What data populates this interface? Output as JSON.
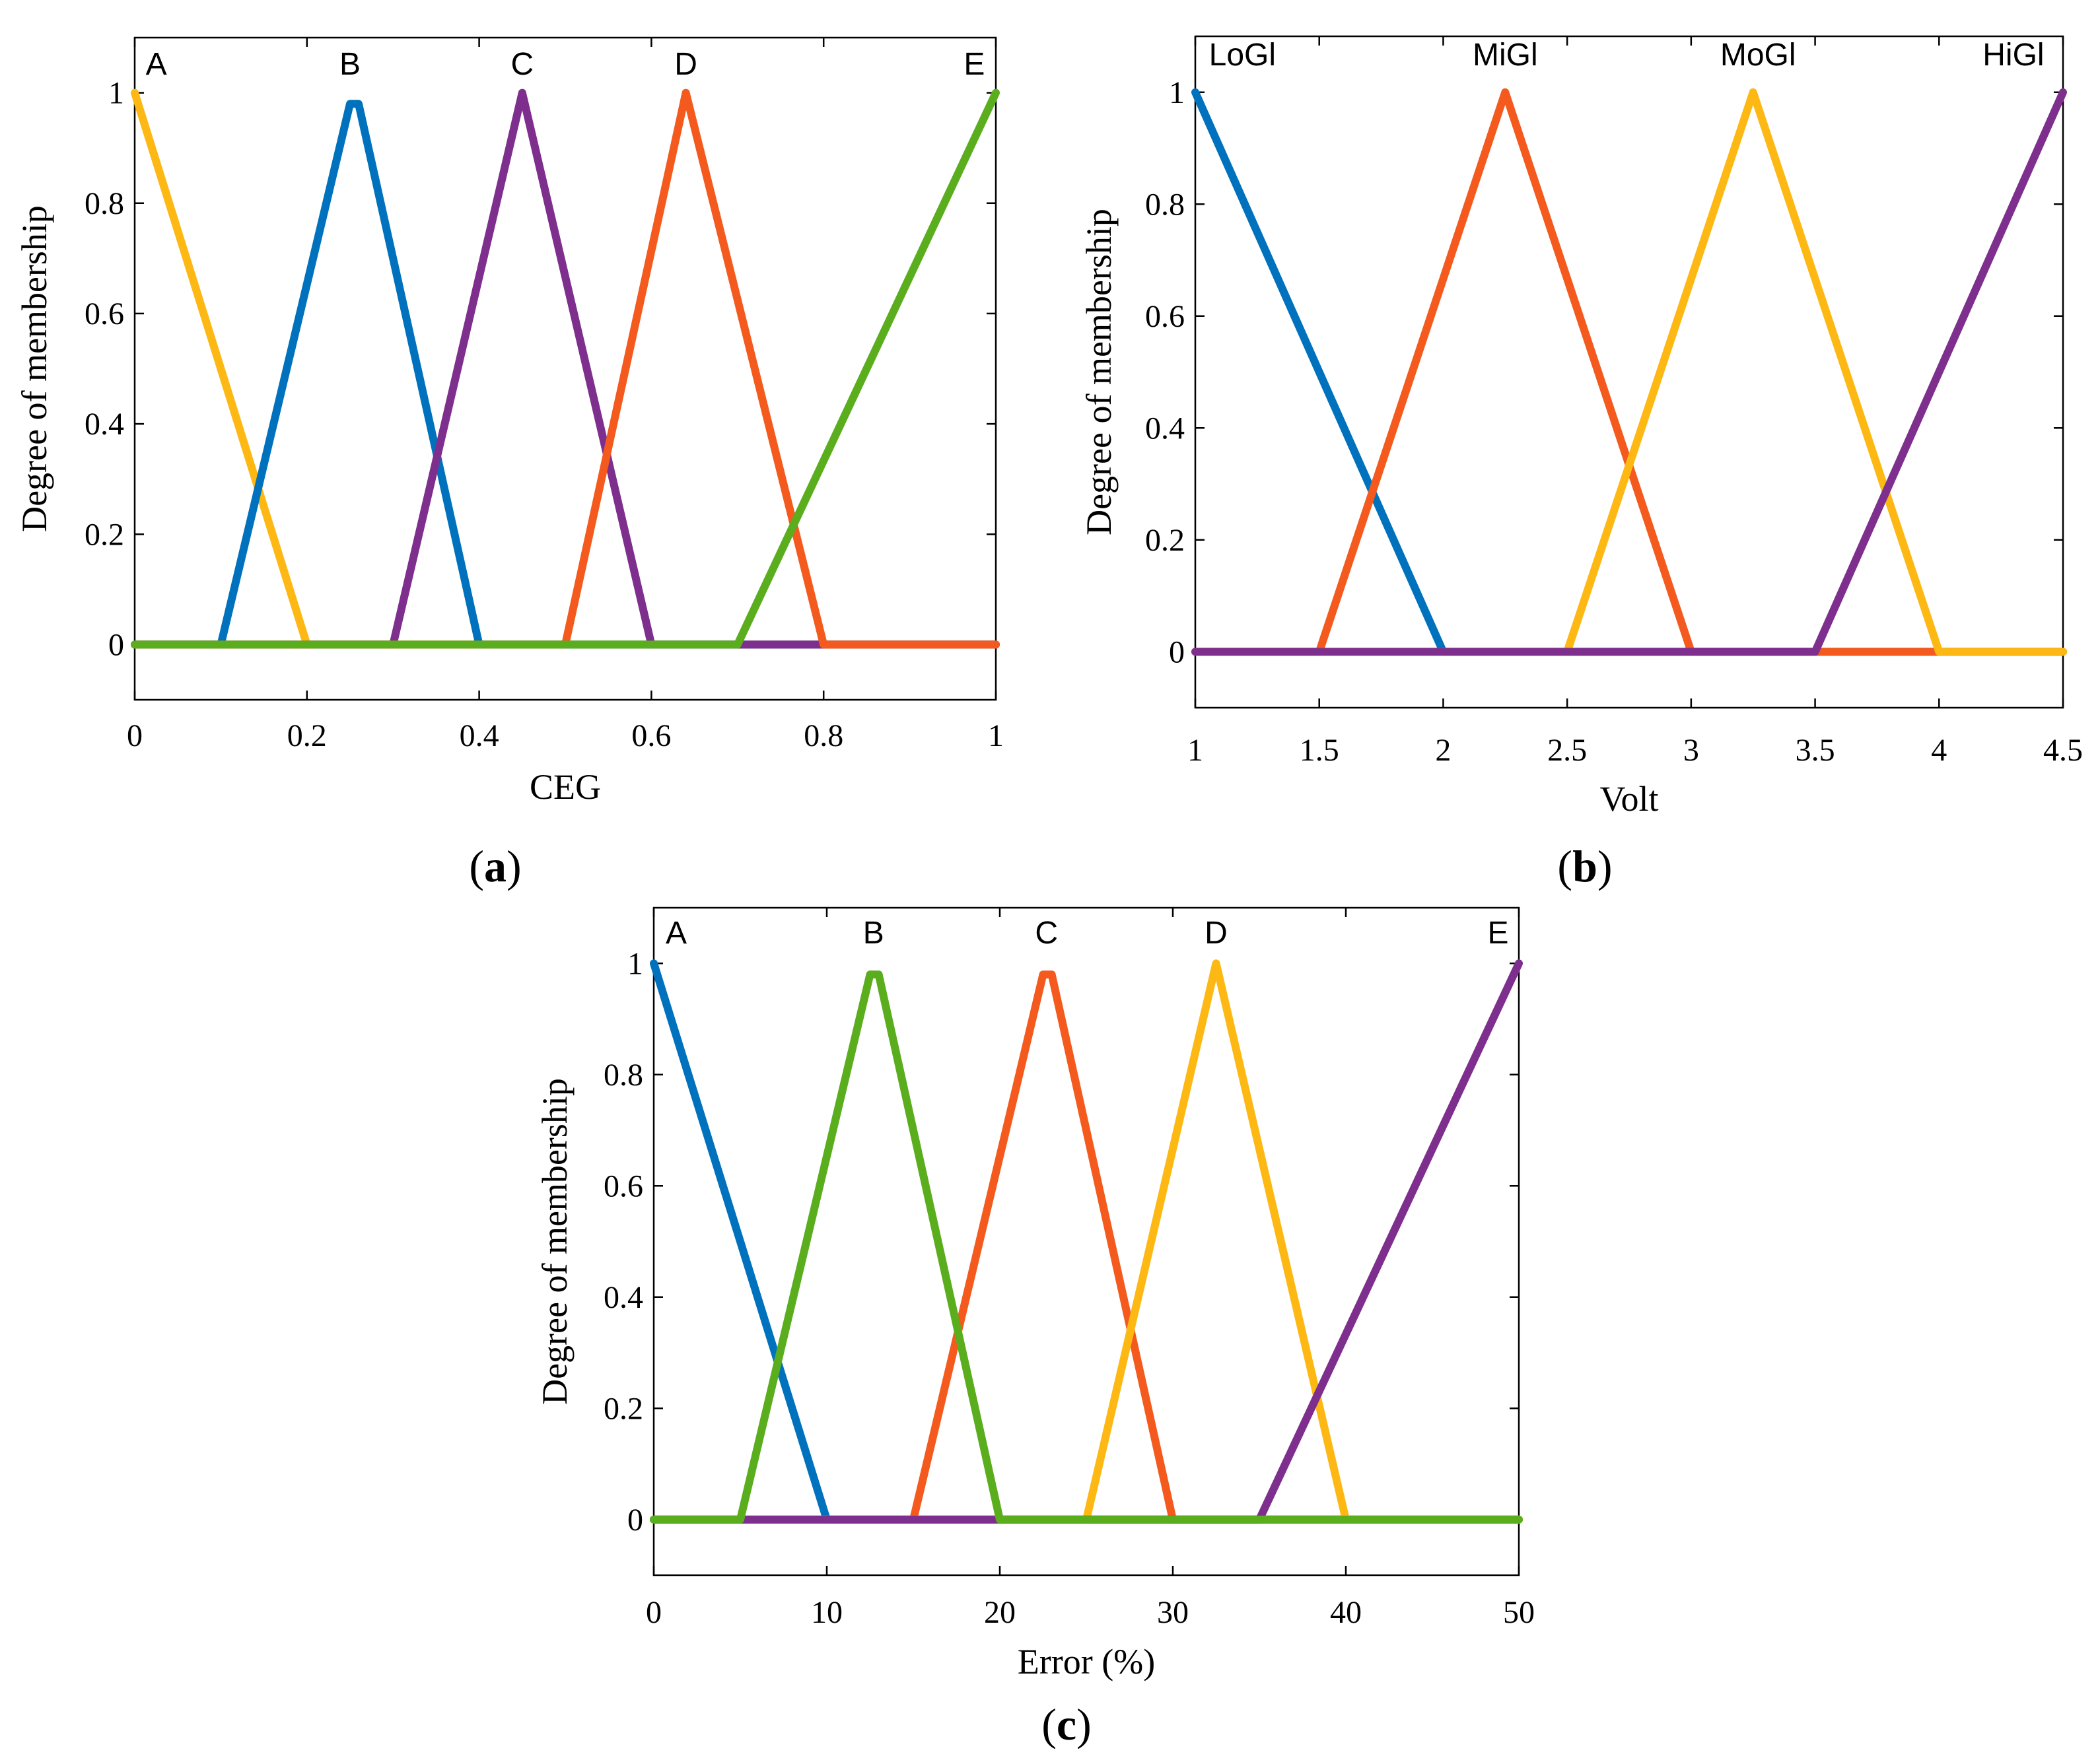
{
  "chart_data": [
    {
      "type": "line",
      "panel_letter": "a",
      "xlabel": "CEG",
      "ylabel": "Degree of membership",
      "xlim": [
        0,
        1
      ],
      "ylim": [
        -0.1,
        1.1
      ],
      "xticks": [
        0,
        0.2,
        0.4,
        0.6,
        0.8,
        1
      ],
      "xtick_labels": [
        "0",
        "0.2",
        "0.4",
        "0.6",
        "0.8",
        "1"
      ],
      "yticks": [
        0,
        0.2,
        0.4,
        0.6,
        0.8,
        1
      ],
      "ytick_labels": [
        "0",
        "0.2",
        "0.4",
        "0.6",
        "0.8",
        "1"
      ],
      "series": [
        {
          "name": "A",
          "color": "#FDB813",
          "x": [
            0,
            0.2,
            1
          ],
          "y": [
            1,
            0,
            0
          ]
        },
        {
          "name": "B",
          "color": "#0072BD",
          "x": [
            0,
            0.1,
            0.25,
            0.26,
            0.4,
            1
          ],
          "y": [
            0,
            0,
            0.98,
            0.98,
            0,
            0
          ]
        },
        {
          "name": "C",
          "color": "#7E2F8E",
          "x": [
            0,
            0.3,
            0.45,
            0.6,
            1
          ],
          "y": [
            0,
            0,
            1,
            0,
            0
          ]
        },
        {
          "name": "D",
          "color": "#F45A1D",
          "x": [
            0,
            0.5,
            0.64,
            0.8,
            1
          ],
          "y": [
            0,
            0,
            1,
            0,
            0
          ]
        },
        {
          "name": "E",
          "color": "#5AAE1E",
          "x": [
            0,
            0.7,
            1
          ],
          "y": [
            0,
            0,
            1
          ]
        }
      ],
      "labels": [
        {
          "text": "A",
          "x": 0.025
        },
        {
          "text": "B",
          "x": 0.25
        },
        {
          "text": "C",
          "x": 0.45
        },
        {
          "text": "D",
          "x": 0.64
        },
        {
          "text": "E",
          "x": 0.975
        }
      ]
    },
    {
      "type": "line",
      "panel_letter": "b",
      "xlabel": "Volt",
      "ylabel": "Degree of membership",
      "xlim": [
        1,
        4.5
      ],
      "ylim": [
        -0.1,
        1.1
      ],
      "xticks": [
        1,
        1.5,
        2,
        2.5,
        3,
        3.5,
        4,
        4.5
      ],
      "xtick_labels": [
        "1",
        "1.5",
        "2",
        "2.5",
        "3",
        "3.5",
        "4",
        "4.5"
      ],
      "yticks": [
        0,
        0.2,
        0.4,
        0.6,
        0.8,
        1
      ],
      "ytick_labels": [
        "0",
        "0.2",
        "0.4",
        "0.6",
        "0.8",
        "1"
      ],
      "series": [
        {
          "name": "LoGl",
          "color": "#0072BD",
          "x": [
            1,
            2,
            4.5
          ],
          "y": [
            1,
            0,
            0
          ]
        },
        {
          "name": "MiGl",
          "color": "#F45A1D",
          "x": [
            1,
            1.5,
            2.25,
            3,
            4.5
          ],
          "y": [
            0,
            0,
            1,
            0,
            0
          ]
        },
        {
          "name": "MoGl",
          "color": "#FDB813",
          "x": [
            1,
            2.5,
            3.25,
            4,
            4.5
          ],
          "y": [
            0,
            0,
            1,
            0,
            0
          ]
        },
        {
          "name": "HiGl",
          "color": "#7E2F8E",
          "x": [
            1,
            3.5,
            4.5
          ],
          "y": [
            0,
            0,
            1
          ]
        }
      ],
      "labels": [
        {
          "text": "LoGl",
          "x": 1.19
        },
        {
          "text": "MiGl",
          "x": 2.25
        },
        {
          "text": "MoGl",
          "x": 3.27
        },
        {
          "text": "HiGl",
          "x": 4.3
        }
      ]
    },
    {
      "type": "line",
      "panel_letter": "c",
      "xlabel": "Error (%)",
      "ylabel": "Degree of membership",
      "xlim": [
        0,
        50
      ],
      "ylim": [
        -0.1,
        1.1
      ],
      "xticks": [
        0,
        10,
        20,
        30,
        40,
        50
      ],
      "xtick_labels": [
        "0",
        "10",
        "20",
        "30",
        "40",
        "50"
      ],
      "yticks": [
        0,
        0.2,
        0.4,
        0.6,
        0.8,
        1
      ],
      "ytick_labels": [
        "0",
        "0.2",
        "0.4",
        "0.6",
        "0.8",
        "1"
      ],
      "series": [
        {
          "name": "A",
          "color": "#0072BD",
          "x": [
            0,
            10,
            50
          ],
          "y": [
            1,
            0,
            0
          ]
        },
        {
          "name": "C",
          "color": "#F45A1D",
          "x": [
            0,
            15,
            22.5,
            23,
            30,
            50
          ],
          "y": [
            0,
            0,
            0.98,
            0.98,
            0,
            0
          ]
        },
        {
          "name": "D",
          "color": "#FDB813",
          "x": [
            0,
            25,
            32.5,
            40,
            50
          ],
          "y": [
            0,
            0,
            1,
            0,
            0
          ]
        },
        {
          "name": "E",
          "color": "#7E2F8E",
          "x": [
            0,
            35,
            50
          ],
          "y": [
            0,
            0,
            1
          ]
        },
        {
          "name": "B",
          "color": "#5AAE1E",
          "x": [
            0,
            5,
            12.5,
            13,
            20,
            50
          ],
          "y": [
            0,
            0,
            0.98,
            0.98,
            0,
            0
          ]
        }
      ],
      "labels": [
        {
          "text": "A",
          "x": 1.3
        },
        {
          "text": "B",
          "x": 12.7
        },
        {
          "text": "C",
          "x": 22.7
        },
        {
          "text": "D",
          "x": 32.5
        },
        {
          "text": "E",
          "x": 48.8
        }
      ]
    }
  ]
}
